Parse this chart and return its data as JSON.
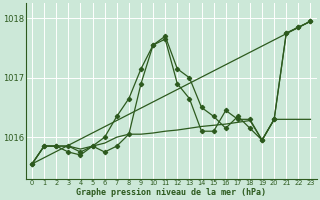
{
  "background_color": "#cce8d8",
  "plot_bg_color": "#cce8d8",
  "line_color": "#2d5a1e",
  "grid_color": "#ffffff",
  "xlabel": "Graphe pression niveau de la mer (hPa)",
  "xlim": [
    -0.5,
    23.5
  ],
  "ylim": [
    1015.3,
    1018.25
  ],
  "yticks": [
    1016,
    1017,
    1018
  ],
  "xticks": [
    0,
    1,
    2,
    3,
    4,
    5,
    6,
    7,
    8,
    9,
    10,
    11,
    12,
    13,
    14,
    15,
    16,
    17,
    18,
    19,
    20,
    21,
    22,
    23
  ],
  "series": [
    {
      "x": [
        0,
        1,
        2,
        3,
        4,
        5,
        6,
        7,
        8,
        9,
        10,
        11,
        12,
        13,
        14,
        15,
        16,
        17,
        18,
        19,
        20,
        21,
        22,
        23
      ],
      "y": [
        1015.55,
        1015.85,
        1015.85,
        1015.85,
        1015.75,
        1015.85,
        1016.0,
        1016.35,
        1016.65,
        1017.15,
        1017.55,
        1017.7,
        1017.15,
        1017.0,
        1016.5,
        1016.35,
        1016.15,
        1016.35,
        1016.15,
        1015.95,
        1016.3,
        1017.75,
        1017.85,
        1017.95
      ],
      "has_markers": true
    },
    {
      "x": [
        0,
        1,
        2,
        3,
        4,
        5,
        6,
        7,
        8,
        9,
        10,
        11,
        12,
        13,
        14,
        15,
        16,
        17,
        18,
        19,
        20,
        21,
        22,
        23
      ],
      "y": [
        1015.55,
        1015.85,
        1015.85,
        1015.75,
        1015.7,
        1015.85,
        1015.75,
        1015.85,
        1016.05,
        1016.9,
        1017.55,
        1017.65,
        1016.9,
        1016.65,
        1016.1,
        1016.1,
        1016.45,
        1016.3,
        1016.3,
        1015.95,
        1016.3,
        1017.75,
        1017.85,
        1017.95
      ],
      "has_markers": true
    },
    {
      "x": [
        0,
        1,
        2,
        3,
        4,
        5,
        6,
        7,
        8,
        9,
        10,
        11,
        12,
        13,
        14,
        15,
        16,
        17,
        18,
        19,
        20,
        21,
        22,
        23
      ],
      "y": [
        1015.55,
        1015.85,
        1015.85,
        1015.85,
        1015.8,
        1015.85,
        1015.9,
        1016.0,
        1016.05,
        1016.05,
        1016.07,
        1016.1,
        1016.12,
        1016.15,
        1016.18,
        1016.2,
        1016.22,
        1016.25,
        1016.28,
        1015.95,
        1016.3,
        1016.3,
        1016.3,
        1016.3
      ],
      "has_markers": false
    },
    {
      "x": [
        0,
        23
      ],
      "y": [
        1015.55,
        1017.95
      ],
      "has_markers": false
    }
  ]
}
